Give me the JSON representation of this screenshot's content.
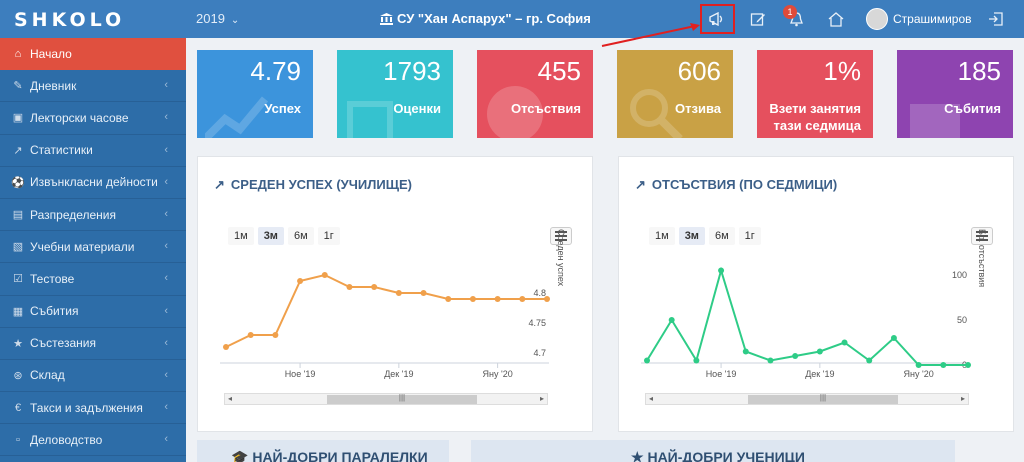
{
  "header": {
    "logo": "SHKOLO",
    "year": "2019",
    "school": "СУ \"Хан Аспарух\" – гр. София",
    "notification_count": "1",
    "user_name": "Страшимиров",
    "icons": [
      "megaphone-icon",
      "edit-icon",
      "bell-icon",
      "home-icon",
      "logout-icon"
    ]
  },
  "sidebar": {
    "items": [
      {
        "label": "Начало",
        "icon": "home-icon",
        "active": true
      },
      {
        "label": "Дневник",
        "icon": "edit-icon"
      },
      {
        "label": "Лекторски часове",
        "icon": "calendar-plus-icon"
      },
      {
        "label": "Статистики",
        "icon": "line-chart-icon"
      },
      {
        "label": "Извънкласни дейности",
        "icon": "soccer-ball-icon"
      },
      {
        "label": "Разпределения",
        "icon": "list-icon"
      },
      {
        "label": "Учебни материали",
        "icon": "book-icon"
      },
      {
        "label": "Тестове",
        "icon": "checkbox-icon"
      },
      {
        "label": "Събития",
        "icon": "calendar-icon"
      },
      {
        "label": "Състезания",
        "icon": "trophy-icon"
      },
      {
        "label": "Склад",
        "icon": "cart-icon"
      },
      {
        "label": "Такси и задължения",
        "icon": "euro-icon"
      },
      {
        "label": "Деловодство",
        "icon": "file-icon"
      }
    ]
  },
  "cards": [
    {
      "value": "4.79",
      "label": "Успех",
      "color": "#3c94dc"
    },
    {
      "value": "1793",
      "label": "Оценки",
      "color": "#35c2cf"
    },
    {
      "value": "455",
      "label": "Отсъствия",
      "color": "#e5505e"
    },
    {
      "value": "606",
      "label": "Отзива",
      "color": "#c9a145"
    },
    {
      "value": "1%",
      "label": "Взети занятия тази седмица",
      "color": "#e5505e"
    },
    {
      "value": "185",
      "label": "Събития",
      "color": "#8e44b0"
    }
  ],
  "panels": {
    "left": {
      "title": "СРЕДЕН УСПЕХ (УЧИЛИЩЕ)"
    },
    "right": {
      "title": "ОТСЪСТВИЯ (ПО СЕДМИЦИ)"
    },
    "zoom_buttons": [
      "1м",
      "3м",
      "6м",
      "1г"
    ],
    "zoom_selected": "3м"
  },
  "chart_data": [
    {
      "type": "line",
      "title": "СРЕДЕН УСПЕХ (УЧИЛИЩЕ)",
      "ylabel": "Среден успех",
      "color": "#f0a04b",
      "ylim": [
        4.68,
        4.86
      ],
      "yticks": [
        "4.7",
        "4.75",
        "4.8"
      ],
      "xticks": [
        "Ное '19",
        "Дек '19",
        "Яну '20"
      ],
      "values": [
        4.71,
        4.73,
        4.73,
        4.82,
        4.83,
        4.81,
        4.81,
        4.8,
        4.8,
        4.79,
        4.79,
        4.79,
        4.79,
        4.79
      ]
    },
    {
      "type": "line",
      "title": "ОТСЪСТВИЯ (ПО СЕДМИЦИ)",
      "ylabel": "Бр. отсъствия",
      "color": "#2ecc87",
      "ylim": [
        0,
        120
      ],
      "yticks": [
        "0",
        "50",
        "100"
      ],
      "xticks": [
        "Ное '19",
        "Дек '19",
        "Яну '20"
      ],
      "values": [
        5,
        50,
        5,
        105,
        15,
        5,
        10,
        15,
        25,
        5,
        30,
        0,
        0,
        0
      ]
    }
  ],
  "bottom": {
    "left_title": "НАЙ-ДОБРИ ПАРАЛЕЛКИ",
    "right_title": "НАЙ-ДОБРИ УЧЕНИЦИ"
  }
}
